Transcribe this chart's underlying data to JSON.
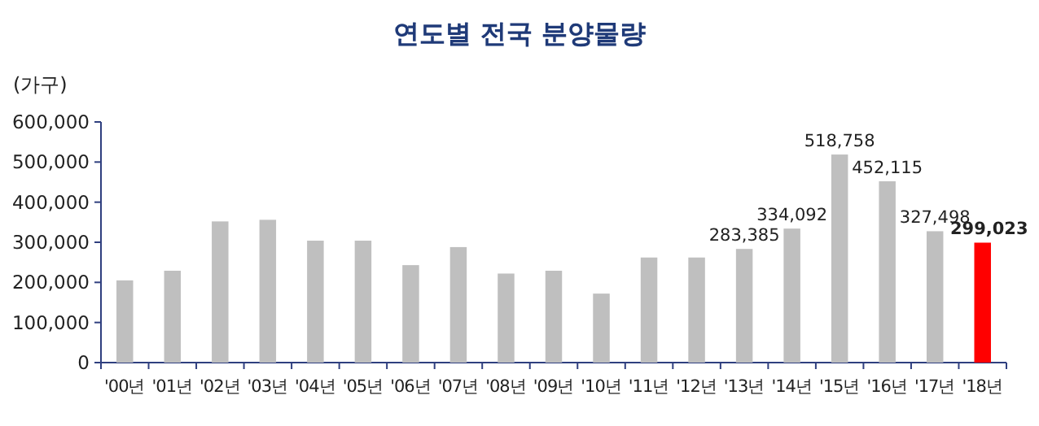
{
  "chart_data": {
    "type": "bar",
    "title": "연도별 전국 분양물량",
    "ylabel": "(가구)",
    "categories": [
      "'00년",
      "'01년",
      "'02년",
      "'03년",
      "'04년",
      "'05년",
      "'06년",
      "'07년",
      "'08년",
      "'09년",
      "'10년",
      "'11년",
      "'12년",
      "'13년",
      "'14년",
      "'15년",
      "'16년",
      "'17년",
      "'18년"
    ],
    "values": [
      205000,
      229000,
      352000,
      356000,
      304000,
      304000,
      243000,
      288000,
      222000,
      229000,
      172000,
      262000,
      262000,
      283385,
      334092,
      518758,
      452115,
      327498,
      299023
    ],
    "colors": [
      "#bfbfbf",
      "#bfbfbf",
      "#bfbfbf",
      "#bfbfbf",
      "#bfbfbf",
      "#bfbfbf",
      "#bfbfbf",
      "#bfbfbf",
      "#bfbfbf",
      "#bfbfbf",
      "#bfbfbf",
      "#bfbfbf",
      "#bfbfbf",
      "#bfbfbf",
      "#bfbfbf",
      "#bfbfbf",
      "#bfbfbf",
      "#bfbfbf",
      "#ff0000"
    ],
    "value_labels": [
      null,
      null,
      null,
      null,
      null,
      null,
      null,
      null,
      null,
      null,
      null,
      null,
      null,
      "283,385",
      "334,092",
      "518,758",
      "452,115",
      "327,498",
      "299,023"
    ],
    "ylim": [
      0,
      600000
    ],
    "yticks": [
      0,
      {
        "value": 100000,
        "label": "100,000"
      },
      {
        "value": 200000,
        "label": "200,000"
      },
      {
        "value": 300000,
        "label": "300,000"
      },
      {
        "value": 400000,
        "label": "400,000"
      },
      {
        "value": 500000,
        "label": "500,000"
      },
      {
        "value": 600000,
        "label": "600,000"
      }
    ]
  }
}
